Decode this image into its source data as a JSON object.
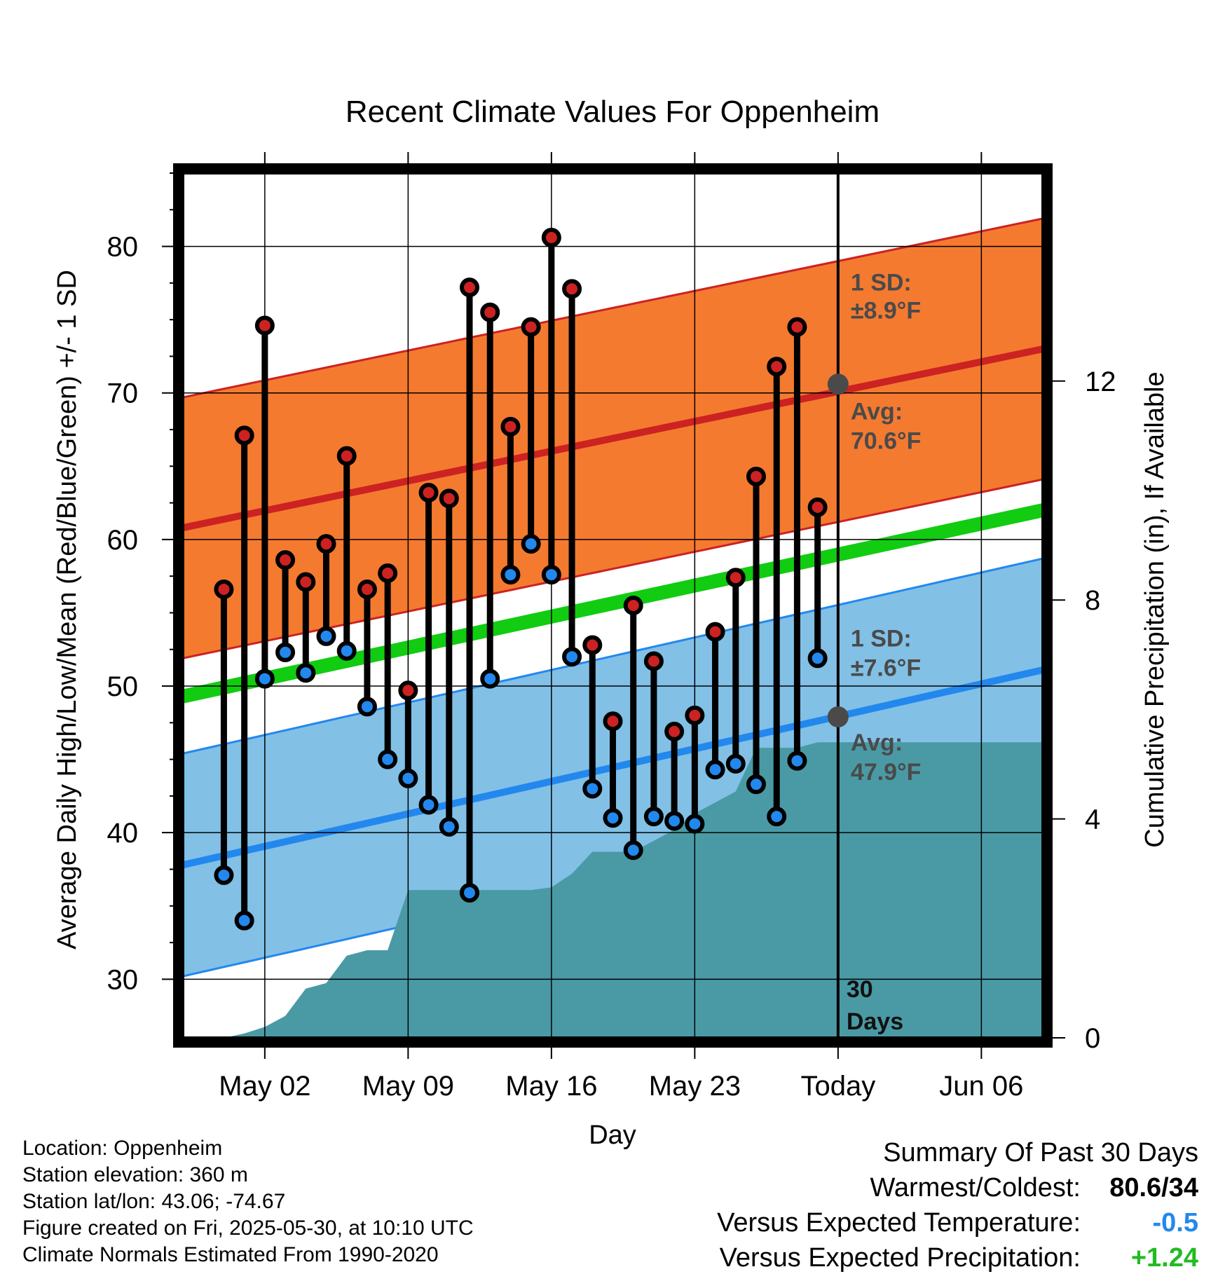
{
  "chart_data": {
    "type": "line",
    "title": "Recent Climate Values For Oppenheim",
    "xlabel": "Day",
    "ylabel": "Average Daily High/Low/Mean (Red/Blue/Green) +/- 1 SD",
    "y2label": "Cumulative Precipitation (in), If Available",
    "ylim": [
      26,
      85
    ],
    "y2lim": [
      0,
      15.8
    ],
    "xlim": [
      "2025-04-28",
      "2025-06-09"
    ],
    "yticks": [
      30,
      40,
      50,
      60,
      70,
      80
    ],
    "y2ticks": [
      0,
      4,
      8,
      12
    ],
    "x_ticks": [
      {
        "date": "2025-05-02",
        "label": "May 02"
      },
      {
        "date": "2025-05-09",
        "label": "May 09"
      },
      {
        "date": "2025-05-16",
        "label": "May 16"
      },
      {
        "date": "2025-05-23",
        "label": "May 23"
      },
      {
        "date": "2025-05-30",
        "label": "Today"
      },
      {
        "date": "2025-06-06",
        "label": "Jun 06"
      }
    ],
    "today": "2025-05-30",
    "days": [
      "2025-04-30",
      "2025-05-01",
      "2025-05-02",
      "2025-05-03",
      "2025-05-04",
      "2025-05-05",
      "2025-05-06",
      "2025-05-07",
      "2025-05-08",
      "2025-05-09",
      "2025-05-10",
      "2025-05-11",
      "2025-05-12",
      "2025-05-13",
      "2025-05-14",
      "2025-05-15",
      "2025-05-16",
      "2025-05-17",
      "2025-05-18",
      "2025-05-19",
      "2025-05-20",
      "2025-05-21",
      "2025-05-22",
      "2025-05-23",
      "2025-05-24",
      "2025-05-25",
      "2025-05-26",
      "2025-05-27",
      "2025-05-28",
      "2025-05-29"
    ],
    "series": [
      {
        "name": "High",
        "color": "#cc2222",
        "values": [
          56.6,
          67.1,
          74.6,
          58.6,
          57.1,
          59.7,
          65.7,
          56.6,
          57.7,
          49.7,
          63.2,
          62.8,
          77.2,
          75.5,
          67.7,
          74.5,
          80.6,
          77.1,
          52.8,
          47.6,
          55.5,
          51.7,
          46.9,
          48.0,
          53.7,
          57.4,
          64.3,
          71.8,
          74.5,
          62.2
        ]
      },
      {
        "name": "Low",
        "color": "#2288ee",
        "values": [
          37.1,
          34.0,
          50.5,
          52.3,
          50.9,
          53.4,
          52.4,
          48.6,
          45.0,
          43.7,
          41.9,
          40.4,
          35.9,
          50.5,
          57.6,
          59.7,
          57.6,
          52.0,
          43.0,
          41.0,
          38.8,
          41.1,
          40.8,
          40.6,
          44.3,
          44.7,
          43.3,
          41.1,
          44.9,
          51.9
        ]
      }
    ],
    "normals": {
      "high_avg": {
        "start": 60.8,
        "end": 73.0,
        "color": "#cc2222",
        "band_color": "#f47a30"
      },
      "high_sd": 8.9,
      "low_avg": {
        "start": 37.8,
        "end": 51.1,
        "color": "#2288ee",
        "band_color": "#82c0e6"
      },
      "low_sd": 7.6,
      "mean_avg": {
        "start": 49.3,
        "end": 62.0,
        "color": "#11cc11"
      }
    },
    "precip_cumulative": {
      "color": "#4a9aa5",
      "days": [
        "2025-04-28",
        "2025-04-30",
        "2025-05-01",
        "2025-05-02",
        "2025-05-03",
        "2025-05-04",
        "2025-05-05",
        "2025-05-06",
        "2025-05-07",
        "2025-05-08",
        "2025-05-09",
        "2025-05-10",
        "2025-05-11",
        "2025-05-12",
        "2025-05-13",
        "2025-05-14",
        "2025-05-15",
        "2025-05-16",
        "2025-05-17",
        "2025-05-18",
        "2025-05-19",
        "2025-05-20",
        "2025-05-21",
        "2025-05-22",
        "2025-05-23",
        "2025-05-24",
        "2025-05-25",
        "2025-05-26",
        "2025-05-27",
        "2025-05-28",
        "2025-05-29",
        "2025-05-30",
        "2025-06-09"
      ],
      "values": [
        0,
        0,
        0.08,
        0.2,
        0.4,
        0.9,
        1.0,
        1.5,
        1.6,
        1.6,
        2.7,
        2.7,
        2.7,
        2.7,
        2.7,
        2.7,
        2.7,
        2.75,
        3.0,
        3.4,
        3.4,
        3.4,
        3.6,
        3.8,
        4.1,
        4.3,
        4.5,
        5.3,
        5.3,
        5.3,
        5.4,
        5.4,
        5.4
      ]
    },
    "annotations": {
      "high_sd_label": "1 SD:",
      "high_sd_value": "±8.9°F",
      "high_avg_label": "Avg:",
      "high_avg_value": "70.6°F",
      "high_avg_at_today": 70.6,
      "low_sd_label": "1 SD:",
      "low_sd_value": "±7.6°F",
      "low_avg_label": "Avg:",
      "low_avg_value": "47.9°F",
      "low_avg_at_today": 47.9,
      "days_label_num": "30",
      "days_label_text": "Days"
    }
  },
  "info": {
    "location": "Location: Oppenheim",
    "elevation": "Station elevation: 360 m",
    "latlon": "Station lat/lon: 43.06; -74.67",
    "created": "Figure created on Fri, 2025-05-30, at 10:10 UTC",
    "normals": "Climate Normals Estimated From 1990-2020"
  },
  "summary": {
    "heading": "Summary Of Past 30 Days",
    "warmest_label": "Warmest/Coldest:",
    "warmest_value": "80.6/34",
    "temp_label": "Versus Expected Temperature:",
    "temp_value": "-0.5",
    "temp_color": "#2288ee",
    "precip_label": "Versus Expected Precipitation:",
    "precip_value": "+1.24",
    "precip_color": "#22bb22"
  }
}
